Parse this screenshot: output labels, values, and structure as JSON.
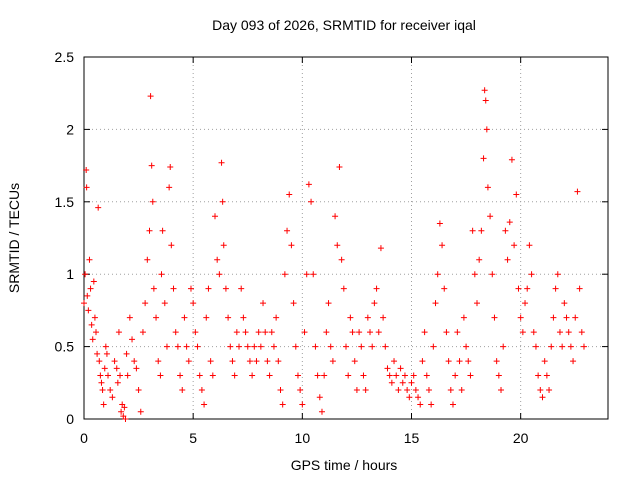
{
  "chart_data": {
    "type": "scatter",
    "title": "Day 093 of 2026, SRMTID for receiver iqal",
    "xlabel": "GPS time / hours",
    "ylabel": "SRMTID / TECUs",
    "xlim": [
      0,
      24
    ],
    "ylim": [
      0,
      2.5
    ],
    "x_ticks": [
      0,
      5,
      10,
      15,
      20
    ],
    "x_tick_labels": [
      "0",
      "5",
      "10",
      "15",
      "20"
    ],
    "y_ticks": [
      0,
      0.5,
      1,
      1.5,
      2,
      2.5
    ],
    "y_tick_labels": [
      "0",
      "0.5",
      "1",
      "1.5",
      "2",
      "2.5"
    ],
    "grid": true,
    "marker": "+",
    "point_color": "#ff0000",
    "series": [
      {
        "name": "SRMTID",
        "points": [
          [
            0.0,
            0.8
          ],
          [
            0.05,
            1.0
          ],
          [
            0.1,
            1.72
          ],
          [
            0.12,
            1.6
          ],
          [
            0.15,
            0.85
          ],
          [
            0.2,
            0.75
          ],
          [
            0.25,
            1.1
          ],
          [
            0.3,
            0.9
          ],
          [
            0.35,
            0.65
          ],
          [
            0.4,
            0.55
          ],
          [
            0.45,
            0.95
          ],
          [
            0.5,
            0.7
          ],
          [
            0.55,
            0.6
          ],
          [
            0.6,
            0.45
          ],
          [
            0.65,
            1.46
          ],
          [
            0.7,
            0.4
          ],
          [
            0.75,
            0.3
          ],
          [
            0.8,
            0.25
          ],
          [
            0.85,
            0.2
          ],
          [
            0.9,
            0.1
          ],
          [
            0.95,
            0.35
          ],
          [
            1.0,
            0.5
          ],
          [
            1.05,
            0.45
          ],
          [
            1.1,
            0.3
          ],
          [
            1.2,
            0.2
          ],
          [
            1.3,
            0.15
          ],
          [
            1.4,
            0.4
          ],
          [
            1.5,
            0.35
          ],
          [
            1.55,
            0.25
          ],
          [
            1.6,
            0.6
          ],
          [
            1.65,
            0.3
          ],
          [
            1.7,
            0.05
          ],
          [
            1.75,
            0.1
          ],
          [
            1.8,
            0.02
          ],
          [
            1.85,
            0.08
          ],
          [
            1.9,
            0.0
          ],
          [
            1.95,
            0.45
          ],
          [
            2.0,
            0.3
          ],
          [
            2.1,
            0.7
          ],
          [
            2.2,
            0.55
          ],
          [
            2.3,
            0.4
          ],
          [
            2.4,
            0.35
          ],
          [
            2.5,
            0.2
          ],
          [
            2.6,
            0.05
          ],
          [
            2.7,
            0.6
          ],
          [
            2.8,
            0.8
          ],
          [
            2.9,
            1.1
          ],
          [
            3.0,
            1.3
          ],
          [
            3.05,
            2.23
          ],
          [
            3.1,
            1.75
          ],
          [
            3.15,
            1.5
          ],
          [
            3.2,
            0.9
          ],
          [
            3.3,
            0.7
          ],
          [
            3.4,
            0.4
          ],
          [
            3.5,
            0.3
          ],
          [
            3.55,
            1.0
          ],
          [
            3.6,
            1.3
          ],
          [
            3.7,
            0.8
          ],
          [
            3.8,
            0.5
          ],
          [
            3.9,
            1.6
          ],
          [
            3.95,
            1.74
          ],
          [
            4.0,
            1.2
          ],
          [
            4.1,
            0.9
          ],
          [
            4.2,
            0.6
          ],
          [
            4.3,
            0.5
          ],
          [
            4.4,
            0.3
          ],
          [
            4.5,
            0.2
          ],
          [
            4.6,
            0.7
          ],
          [
            4.7,
            0.5
          ],
          [
            4.8,
            0.4
          ],
          [
            4.9,
            0.9
          ],
          [
            5.0,
            0.8
          ],
          [
            5.1,
            0.6
          ],
          [
            5.2,
            0.5
          ],
          [
            5.3,
            0.3
          ],
          [
            5.4,
            0.2
          ],
          [
            5.5,
            0.1
          ],
          [
            5.6,
            0.7
          ],
          [
            5.7,
            0.9
          ],
          [
            5.8,
            0.4
          ],
          [
            5.9,
            0.3
          ],
          [
            6.0,
            1.4
          ],
          [
            6.1,
            1.1
          ],
          [
            6.2,
            1.0
          ],
          [
            6.3,
            1.77
          ],
          [
            6.35,
            1.5
          ],
          [
            6.4,
            1.2
          ],
          [
            6.5,
            0.9
          ],
          [
            6.6,
            0.7
          ],
          [
            6.7,
            0.5
          ],
          [
            6.8,
            0.4
          ],
          [
            6.9,
            0.3
          ],
          [
            7.0,
            0.6
          ],
          [
            7.1,
            0.5
          ],
          [
            7.2,
            0.9
          ],
          [
            7.3,
            0.7
          ],
          [
            7.4,
            0.6
          ],
          [
            7.5,
            0.5
          ],
          [
            7.6,
            0.4
          ],
          [
            7.7,
            0.3
          ],
          [
            7.8,
            0.5
          ],
          [
            7.9,
            0.4
          ],
          [
            8.0,
            0.6
          ],
          [
            8.1,
            0.5
          ],
          [
            8.2,
            0.8
          ],
          [
            8.3,
            0.6
          ],
          [
            8.4,
            0.4
          ],
          [
            8.5,
            0.3
          ],
          [
            8.6,
            0.6
          ],
          [
            8.7,
            0.5
          ],
          [
            8.8,
            0.7
          ],
          [
            8.9,
            0.4
          ],
          [
            9.0,
            0.2
          ],
          [
            9.1,
            0.1
          ],
          [
            9.2,
            1.0
          ],
          [
            9.3,
            1.3
          ],
          [
            9.4,
            1.55
          ],
          [
            9.5,
            1.2
          ],
          [
            9.6,
            0.8
          ],
          [
            9.7,
            0.5
          ],
          [
            9.8,
            0.3
          ],
          [
            9.9,
            0.2
          ],
          [
            10.0,
            0.1
          ],
          [
            10.1,
            0.6
          ],
          [
            10.2,
            1.0
          ],
          [
            10.3,
            1.62
          ],
          [
            10.4,
            1.5
          ],
          [
            10.5,
            1.0
          ],
          [
            10.6,
            0.5
          ],
          [
            10.7,
            0.3
          ],
          [
            10.8,
            0.15
          ],
          [
            10.9,
            0.05
          ],
          [
            11.0,
            0.3
          ],
          [
            11.1,
            0.6
          ],
          [
            11.2,
            0.8
          ],
          [
            11.3,
            0.5
          ],
          [
            11.4,
            0.4
          ],
          [
            11.5,
            1.4
          ],
          [
            11.6,
            1.2
          ],
          [
            11.7,
            1.74
          ],
          [
            11.8,
            1.1
          ],
          [
            11.9,
            0.9
          ],
          [
            12.0,
            0.5
          ],
          [
            12.1,
            0.3
          ],
          [
            12.2,
            0.7
          ],
          [
            12.3,
            0.6
          ],
          [
            12.4,
            0.4
          ],
          [
            12.5,
            0.2
          ],
          [
            12.6,
            0.6
          ],
          [
            12.7,
            0.5
          ],
          [
            12.8,
            0.3
          ],
          [
            12.9,
            0.2
          ],
          [
            13.0,
            0.7
          ],
          [
            13.1,
            0.6
          ],
          [
            13.2,
            0.5
          ],
          [
            13.3,
            0.8
          ],
          [
            13.4,
            0.9
          ],
          [
            13.5,
            0.6
          ],
          [
            13.6,
            1.18
          ],
          [
            13.7,
            0.7
          ],
          [
            13.8,
            0.5
          ],
          [
            13.9,
            0.35
          ],
          [
            14.0,
            0.3
          ],
          [
            14.1,
            0.25
          ],
          [
            14.2,
            0.4
          ],
          [
            14.3,
            0.3
          ],
          [
            14.4,
            0.2
          ],
          [
            14.5,
            0.35
          ],
          [
            14.6,
            0.25
          ],
          [
            14.7,
            0.3
          ],
          [
            14.8,
            0.2
          ],
          [
            14.9,
            0.15
          ],
          [
            15.0,
            0.25
          ],
          [
            15.1,
            0.3
          ],
          [
            15.2,
            0.2
          ],
          [
            15.3,
            0.15
          ],
          [
            15.4,
            0.1
          ],
          [
            15.5,
            0.4
          ],
          [
            15.6,
            0.6
          ],
          [
            15.7,
            0.3
          ],
          [
            15.8,
            0.2
          ],
          [
            15.9,
            0.1
          ],
          [
            16.0,
            0.5
          ],
          [
            16.1,
            0.8
          ],
          [
            16.2,
            1.0
          ],
          [
            16.3,
            1.35
          ],
          [
            16.4,
            1.2
          ],
          [
            16.5,
            0.9
          ],
          [
            16.6,
            0.6
          ],
          [
            16.7,
            0.4
          ],
          [
            16.8,
            0.2
          ],
          [
            16.9,
            0.1
          ],
          [
            17.0,
            0.3
          ],
          [
            17.1,
            0.6
          ],
          [
            17.2,
            0.4
          ],
          [
            17.3,
            0.2
          ],
          [
            17.4,
            0.7
          ],
          [
            17.5,
            0.5
          ],
          [
            17.6,
            0.4
          ],
          [
            17.7,
            0.3
          ],
          [
            17.8,
            1.3
          ],
          [
            17.9,
            1.0
          ],
          [
            18.0,
            0.8
          ],
          [
            18.1,
            1.1
          ],
          [
            18.2,
            1.3
          ],
          [
            18.3,
            1.8
          ],
          [
            18.35,
            2.27
          ],
          [
            18.4,
            2.2
          ],
          [
            18.45,
            2.0
          ],
          [
            18.5,
            1.6
          ],
          [
            18.6,
            1.4
          ],
          [
            18.7,
            1.0
          ],
          [
            18.8,
            0.7
          ],
          [
            18.9,
            0.4
          ],
          [
            19.0,
            0.3
          ],
          [
            19.1,
            0.2
          ],
          [
            19.2,
            0.5
          ],
          [
            19.3,
            1.3
          ],
          [
            19.4,
            1.1
          ],
          [
            19.5,
            1.36
          ],
          [
            19.6,
            1.79
          ],
          [
            19.7,
            1.2
          ],
          [
            19.8,
            1.55
          ],
          [
            19.9,
            0.9
          ],
          [
            20.0,
            0.7
          ],
          [
            20.1,
            0.6
          ],
          [
            20.2,
            0.8
          ],
          [
            20.3,
            0.9
          ],
          [
            20.4,
            1.2
          ],
          [
            20.5,
            1.0
          ],
          [
            20.6,
            0.6
          ],
          [
            20.7,
            0.5
          ],
          [
            20.8,
            0.3
          ],
          [
            20.9,
            0.2
          ],
          [
            21.0,
            0.15
          ],
          [
            21.1,
            0.4
          ],
          [
            21.2,
            0.3
          ],
          [
            21.3,
            0.2
          ],
          [
            21.4,
            0.5
          ],
          [
            21.5,
            0.7
          ],
          [
            21.6,
            0.9
          ],
          [
            21.7,
            1.0
          ],
          [
            21.8,
            0.6
          ],
          [
            21.9,
            0.5
          ],
          [
            22.0,
            0.8
          ],
          [
            22.1,
            0.7
          ],
          [
            22.2,
            0.6
          ],
          [
            22.3,
            0.5
          ],
          [
            22.4,
            0.4
          ],
          [
            22.5,
            0.7
          ],
          [
            22.6,
            1.57
          ],
          [
            22.7,
            0.9
          ],
          [
            22.8,
            0.6
          ],
          [
            22.9,
            0.5
          ]
        ]
      }
    ]
  }
}
